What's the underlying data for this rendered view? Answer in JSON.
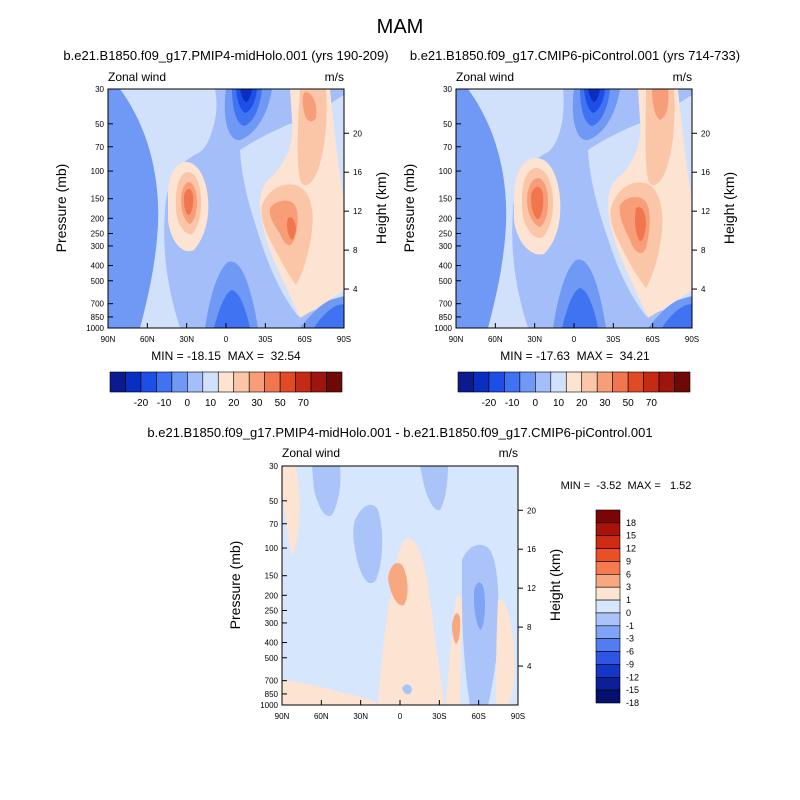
{
  "figure_title": "MAM",
  "chart_data": [
    {
      "type": "heatmap",
      "title": "b.e21.B1850.f09_g17.PMIP4-midHolo.001 (yrs 190-209)",
      "left_label": "Zonal wind",
      "right_label": "m/s",
      "ylabel": "Pressure (mb)",
      "ylabel_right": "Height (km)",
      "x_ticks": [
        "90N",
        "60N",
        "30N",
        "0",
        "30S",
        "60S",
        "90S"
      ],
      "y_ticks": [
        "30",
        "50",
        "70",
        "100",
        "150",
        "200",
        "250",
        "300",
        "400",
        "500",
        "700",
        "850",
        "1000"
      ],
      "y_ticks_right": [
        "20",
        "16",
        "12",
        "8",
        "4"
      ],
      "y_scale": "log",
      "stats": "MIN = -18.15  MAX =  32.54",
      "min": -18.15,
      "max": 32.54,
      "colorbar_labels": [
        "-20",
        "-10",
        "0",
        "10",
        "20",
        "30",
        "50",
        "70"
      ],
      "fields": {
        "jets": [
          {
            "lat": -28,
            "p": 190,
            "value": 32.54
          },
          {
            "lat": 35,
            "p": 210,
            "value": 25
          }
        ],
        "easterlies": [
          {
            "lat": -12,
            "p": 30,
            "value": -18.15
          },
          {
            "lat": -3,
            "p": 500,
            "value": -8
          },
          {
            "lat": 80,
            "p": 950,
            "value": -10
          }
        ]
      }
    },
    {
      "type": "heatmap",
      "title": "b.e21.B1850.f09_g17.CMIP6-piControl.001 (yrs 714-733)",
      "left_label": "Zonal wind",
      "right_label": "m/s",
      "ylabel": "Pressure (mb)",
      "ylabel_right": "Height (km)",
      "x_ticks": [
        "90N",
        "60N",
        "30N",
        "0",
        "30S",
        "60S",
        "90S"
      ],
      "y_ticks": [
        "30",
        "50",
        "70",
        "100",
        "150",
        "200",
        "250",
        "300",
        "400",
        "500",
        "700",
        "850",
        "1000"
      ],
      "y_ticks_right": [
        "20",
        "16",
        "12",
        "8",
        "4"
      ],
      "y_scale": "log",
      "stats": "MIN = -17.63  MAX =  34.21",
      "min": -17.63,
      "max": 34.21,
      "colorbar_labels": [
        "-20",
        "-10",
        "0",
        "10",
        "20",
        "30",
        "50",
        "70"
      ]
    },
    {
      "type": "heatmap",
      "title": "b.e21.B1850.f09_g17.PMIP4-midHolo.001 - b.e21.B1850.f09_g17.CMIP6-piControl.001",
      "left_label": "Zonal wind",
      "right_label": "m/s",
      "ylabel": "Pressure (mb)",
      "ylabel_right": "Height (km)",
      "x_ticks": [
        "90N",
        "60N",
        "30N",
        "0",
        "30S",
        "60S",
        "90S"
      ],
      "y_ticks": [
        "30",
        "50",
        "70",
        "100",
        "150",
        "200",
        "250",
        "300",
        "400",
        "500",
        "700",
        "850",
        "1000"
      ],
      "y_ticks_right": [
        "20",
        "16",
        "12",
        "8",
        "4"
      ],
      "y_scale": "log",
      "stats": "MIN =  -3.52  MAX =   1.52",
      "min": -3.52,
      "max": 1.52,
      "colorbar_labels": [
        "18",
        "15",
        "12",
        "9",
        "6",
        "3",
        "1",
        "0",
        "-1",
        "-3",
        "-6",
        "-9",
        "-12",
        "-15",
        "-18"
      ]
    }
  ],
  "colors": {
    "top_palette": [
      "#0b1a8c",
      "#0a2ebf",
      "#1d4fe8",
      "#3f73f2",
      "#7099f5",
      "#a3bef8",
      "#d2e1fb",
      "#fde3d2",
      "#fbc6a8",
      "#f79e79",
      "#f2764d",
      "#e24a26",
      "#c52a14",
      "#9d150c",
      "#6e0906"
    ],
    "diff_palette": [
      "#7a0505",
      "#a8140a",
      "#d12a14",
      "#ea4f28",
      "#f47b50",
      "#f8a87f",
      "#fde3d2",
      "#d6e6fc",
      "#aac4f9",
      "#7fa3f5",
      "#517df0",
      "#2d56e6",
      "#1537c6",
      "#0b1f99",
      "#061070"
    ]
  }
}
